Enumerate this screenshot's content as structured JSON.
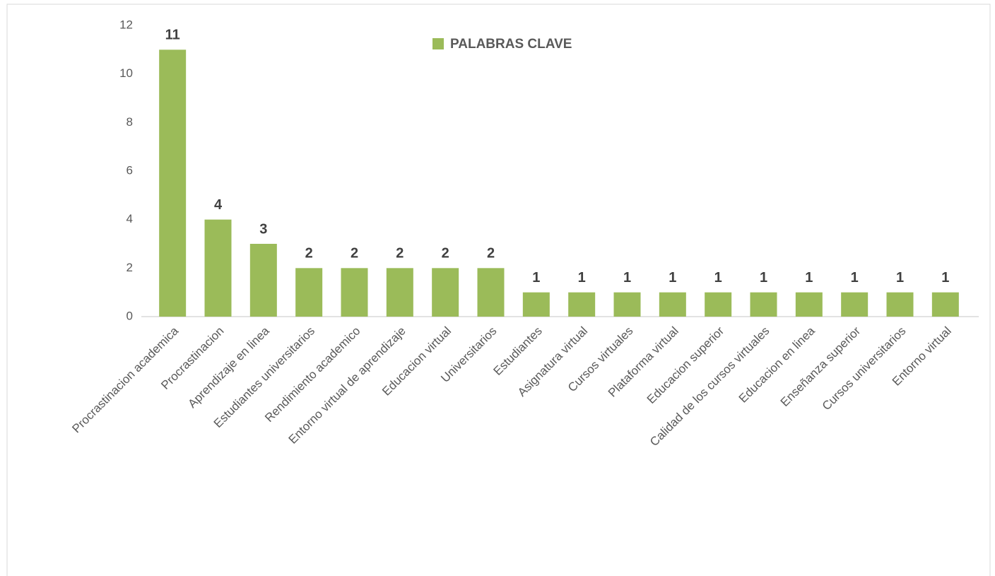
{
  "chart_data": {
    "type": "bar",
    "categories": [
      "Procrastinacion academica",
      "Procrastinacion",
      "Aprendizaje en linea",
      "Estudiantes universitarios",
      "Rendimiento academico",
      "Entorno virtual de aprendizaje",
      "Educacion virtual",
      "Universitarios",
      "Estudiantes",
      "Asignatura virtual",
      "Cursos virtuales",
      "Plataforma virtual",
      "Educacion superior",
      "Calidad de los cursos virtuales",
      "Educacion en linea",
      "Enseñanza superior",
      "Cursos universitarios",
      "Entorno virtual"
    ],
    "series": [
      {
        "name": "PALABRAS CLAVE",
        "color": "#9bbb59",
        "values": [
          11,
          4,
          3,
          2,
          2,
          2,
          2,
          2,
          1,
          1,
          1,
          1,
          1,
          1,
          1,
          1,
          1,
          1
        ]
      }
    ],
    "ylim": [
      0,
      12
    ],
    "yticks": [
      0,
      2,
      4,
      6,
      8,
      10,
      12
    ],
    "grid": false,
    "legend": "top",
    "data_labels": true
  }
}
